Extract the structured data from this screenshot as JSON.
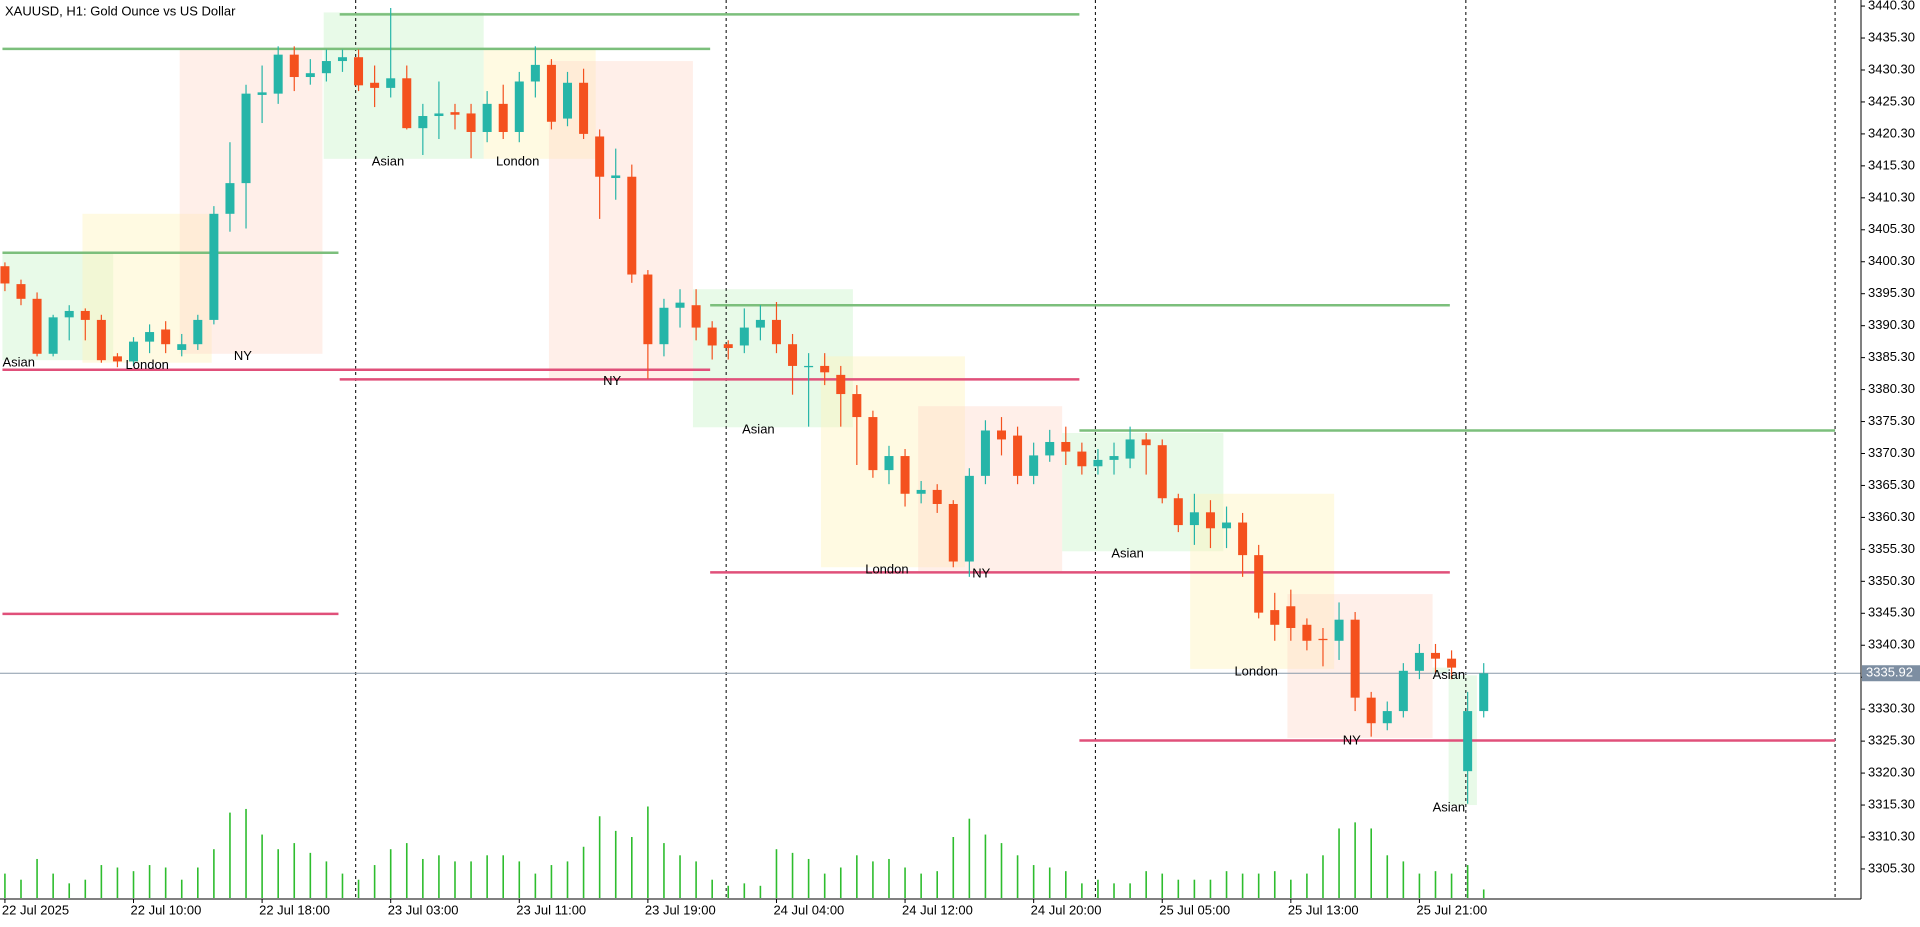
{
  "chart_data": {
    "type": "candlestick",
    "title": "XAUUSD, H1:  Gold Ounce vs US Dollar",
    "categories": [
      "22 Jul 2025",
      null,
      null,
      null,
      null,
      null,
      null,
      null,
      "22 Jul 10:00",
      null,
      null,
      null,
      null,
      null,
      null,
      null,
      "22 Jul 18:00",
      null,
      null,
      null,
      null,
      null,
      null,
      null,
      "23 Jul 03:00",
      null,
      null,
      null,
      null,
      null,
      null,
      null,
      "23 Jul 11:00",
      null,
      null,
      null,
      null,
      null,
      null,
      null,
      "23 Jul 19:00",
      null,
      null,
      null,
      null,
      null,
      null,
      null,
      "24 Jul 04:00",
      null,
      null,
      null,
      null,
      null,
      null,
      null,
      "24 Jul 12:00",
      null,
      null,
      null,
      null,
      null,
      null,
      null,
      "24 Jul 20:00",
      null,
      null,
      null,
      null,
      null,
      null,
      null,
      "25 Jul 05:00",
      null,
      null,
      null,
      null,
      null,
      null,
      null,
      "25 Jul 13:00",
      null,
      null,
      null,
      null,
      null,
      null,
      null,
      "25 Jul 21:00",
      null,
      null,
      null,
      null
    ],
    "open": [
      3399.6,
      3396.8,
      3394.5,
      3385.9,
      3391.6,
      3392.6,
      3391.2,
      3385.5,
      3384.7,
      3387.8,
      3389.7,
      3386.5,
      3387.4,
      3391.2,
      3407.8,
      3412.6,
      3426.4,
      3426.6,
      3432.7,
      3429.2,
      3429.8,
      3431.7,
      3432.3,
      3428.3,
      3427.5,
      3429,
      3421.2,
      3423.1,
      3423.7,
      3423.5,
      3420.6,
      3425,
      3420.6,
      3428.5,
      3431.1,
      3422.7,
      3428.3,
      3419.9,
      3413.4,
      3413.6,
      3398.3,
      3387.4,
      3393.1,
      3393.5,
      3390,
      3387.4,
      3387.2,
      3390,
      3391.2,
      3387.4,
      3383.8,
      3384,
      3382.6,
      3379.6,
      3376,
      3367.7,
      3369.9,
      3364,
      3364.6,
      3362.4,
      3353.4,
      3366.8,
      3373.9,
      3373.1,
      3366.8,
      3370,
      3372.1,
      3370.6,
      3368.3,
      3369.3,
      3369.5,
      3372.5,
      3371.6,
      3363.3,
      3359.1,
      3361.1,
      3358.6,
      3359.5,
      3354.4,
      3345.8,
      3346.4,
      3343.5,
      3341.3,
      3341,
      3344.3,
      3332.1,
      3328.1,
      3330,
      3336.3,
      3339.1,
      3338.2,
      3320.6,
      3330
    ],
    "high": [
      3400.2,
      3397.5,
      3395.5,
      3392,
      3393.5,
      3393,
      3392,
      3386,
      3388.5,
      3390.5,
      3391,
      3389,
      3392,
      3409,
      3419,
      3428,
      3431,
      3434,
      3434,
      3432,
      3433.5,
      3433.5,
      3433.5,
      3431,
      3440,
      3431,
      3425,
      3428.5,
      3425,
      3425,
      3427,
      3428,
      3430,
      3434,
      3432,
      3430,
      3430.5,
      3421,
      3418,
      3415.5,
      3399,
      3394.5,
      3396,
      3396,
      3391,
      3388,
      3393,
      3393.5,
      3394,
      3389,
      3386,
      3386,
      3384,
      3381,
      3377,
      3371.5,
      3371,
      3366,
      3365.5,
      3363,
      3368,
      3375.5,
      3376,
      3374.5,
      3372,
      3374,
      3374.5,
      3372,
      3371,
      3372,
      3374.5,
      3373.5,
      3372.5,
      3364,
      3364,
      3363,
      3362,
      3361,
      3356,
      3348.5,
      3349,
      3344.5,
      3343,
      3347,
      3345.5,
      3333,
      3331.5,
      3337.5,
      3340.5,
      3340.5,
      3339.5,
      3333,
      3337.5
    ],
    "low": [
      3395.7,
      3393.5,
      3385.5,
      3385.5,
      3388,
      3388,
      3384.5,
      3383.8,
      3384,
      3386,
      3386,
      3385.5,
      3386.5,
      3390.5,
      3405,
      3405.5,
      3422,
      3425,
      3427,
      3428,
      3428.5,
      3430,
      3427,
      3424.5,
      3426,
      3421,
      3417,
      3419.5,
      3421,
      3416.5,
      3419,
      3419.5,
      3419,
      3426,
      3421,
      3421.5,
      3419.5,
      3407,
      3410,
      3397,
      3382,
      3385.5,
      3390,
      3388,
      3385,
      3385,
      3386,
      3388,
      3386,
      3379.5,
      3374.5,
      3381,
      3374.5,
      3368.5,
      3366.5,
      3365.5,
      3362,
      3362.5,
      3361,
      3352.5,
      3351,
      3365.5,
      3370,
      3365.5,
      3365.5,
      3369,
      3368.5,
      3367,
      3367,
      3367,
      3368,
      3367,
      3362.5,
      3358,
      3356,
      3355.5,
      3355.5,
      3351,
      3344.5,
      3341,
      3341,
      3339.5,
      3337,
      3338,
      3330,
      3326,
      3327,
      3329,
      3335,
      3336,
      3335,
      3315.5,
      3329
    ],
    "close": [
      3396.9,
      3394.5,
      3385.9,
      3391.6,
      3392.6,
      3391.2,
      3384.9,
      3384.7,
      3387.8,
      3389.3,
      3387.4,
      3387.4,
      3391.2,
      3407.8,
      3412.6,
      3426.6,
      3426.8,
      3432.7,
      3429.2,
      3429.8,
      3431.7,
      3432.3,
      3427.9,
      3427.5,
      3429,
      3421.2,
      3423.1,
      3423.5,
      3423.3,
      3420.6,
      3425,
      3420.6,
      3428.5,
      3431.1,
      3422.2,
      3428.3,
      3420.3,
      3413.6,
      3413.8,
      3398.3,
      3387.4,
      3393.1,
      3393.9,
      3390,
      3387.2,
      3386.8,
      3390,
      3391.2,
      3387.4,
      3384,
      3384,
      3383,
      3379.6,
      3376,
      3367.7,
      3369.9,
      3364,
      3364.6,
      3362.4,
      3353.4,
      3366.8,
      3373.9,
      3372.5,
      3366.8,
      3370,
      3372.1,
      3370.6,
      3368.3,
      3369.3,
      3369.9,
      3372.5,
      3371.6,
      3363.3,
      3359.1,
      3361.1,
      3358.6,
      3359.5,
      3354.4,
      3345.4,
      3343.5,
      3343,
      3341,
      3341.1,
      3344.3,
      3332.1,
      3328.1,
      3330,
      3336.3,
      3339.1,
      3338.2,
      3336.8,
      3330,
      3335.9
    ],
    "volume": [
      20,
      15,
      32,
      20,
      12,
      15,
      27,
      25,
      22,
      27,
      25,
      15,
      25,
      40,
      70,
      73,
      52,
      40,
      45,
      37,
      30,
      20,
      15,
      27,
      40,
      45,
      32,
      35,
      30,
      30,
      35,
      35,
      30,
      20,
      27,
      30,
      42,
      67,
      55,
      50,
      75,
      45,
      35,
      30,
      15,
      10,
      12,
      10,
      40,
      37,
      32,
      20,
      25,
      35,
      30,
      32,
      25,
      20,
      22,
      50,
      65,
      52,
      45,
      35,
      27,
      25,
      22,
      12,
      15,
      12,
      12,
      22,
      20,
      15,
      15,
      15,
      22,
      20,
      20,
      22,
      15,
      20,
      35,
      57,
      62,
      57,
      35,
      30,
      20,
      22,
      20,
      27,
      7
    ],
    "bull_color": "#26b5a8",
    "bear_color": "#f4511e",
    "volume_color": "#2ebd2e",
    "ylim": [
      3300.6,
      3441.25
    ],
    "yticks": [
      {
        "value": 3440.3,
        "label": "3440.30"
      },
      {
        "value": 3435.3,
        "label": "3435.30"
      },
      {
        "value": 3430.3,
        "label": "3430.30"
      },
      {
        "value": 3425.3,
        "label": "3425.30"
      },
      {
        "value": 3420.3,
        "label": "3420.30"
      },
      {
        "value": 3415.3,
        "label": "3415.30"
      },
      {
        "value": 3410.3,
        "label": "3410.30"
      },
      {
        "value": 3405.3,
        "label": "3405.30"
      },
      {
        "value": 3400.3,
        "label": "3400.30"
      },
      {
        "value": 3395.3,
        "label": "3395.30"
      },
      {
        "value": 3390.3,
        "label": "3390.30"
      },
      {
        "value": 3385.3,
        "label": "3385.30"
      },
      {
        "value": 3380.3,
        "label": "3380.30"
      },
      {
        "value": 3375.3,
        "label": "3375.30"
      },
      {
        "value": 3370.3,
        "label": "3370.30"
      },
      {
        "value": 3365.3,
        "label": "3365.30"
      },
      {
        "value": 3360.3,
        "label": "3360.30"
      },
      {
        "value": 3355.3,
        "label": "3355.30"
      },
      {
        "value": 3350.3,
        "label": "3350.30"
      },
      {
        "value": 3345.3,
        "label": "3345.30"
      },
      {
        "value": 3340.3,
        "label": "3340.30"
      },
      {
        "value": 3335.3,
        "label": "3335.30"
      },
      {
        "value": 3330.3,
        "label": "3330.30"
      },
      {
        "value": 3325.3,
        "label": "3325.30"
      },
      {
        "value": 3320.3,
        "label": "3320.30"
      },
      {
        "value": 3315.3,
        "label": "3315.30"
      },
      {
        "value": 3310.3,
        "label": "3310.30"
      },
      {
        "value": 3305.3,
        "label": "3305.30"
      }
    ],
    "current_price": 3335.92,
    "levels": [
      {
        "value": 3401.7,
        "color": "#7cbf7c"
      },
      {
        "value": 3383.4,
        "color": "#e0507a"
      },
      {
        "value": 3345.2,
        "color": "#e0507a"
      },
      {
        "value": 3433.6,
        "color": "#7cbf7c"
      },
      {
        "value": 3439.0,
        "color": "#7cbf7c"
      },
      {
        "value": 3381.9,
        "color": "#e0507a"
      },
      {
        "value": 3393.5,
        "color": "#7cbf7c"
      },
      {
        "value": 3351.7,
        "color": "#e0507a"
      },
      {
        "value": 3373.9,
        "color": "#7cbf7c"
      },
      {
        "value": 3325.4,
        "color": "#e0507a"
      }
    ],
    "sessions": [
      {
        "name": "Asian",
        "high": 3401.7,
        "low": 3384.9
      },
      {
        "name": "London",
        "high": 3407.8,
        "low": 3384.5
      },
      {
        "name": "NY",
        "high": 3433.6,
        "low": 3385.9
      },
      {
        "name": "Asian",
        "high": 3439.3,
        "low": 3416.4
      },
      {
        "name": "London",
        "high": 3433.6,
        "low": 3416.4
      },
      {
        "name": "NY",
        "high": 3431.7,
        "low": 3382
      },
      {
        "name": "Asian",
        "high": 3396,
        "low": 3374.4
      },
      {
        "name": "London",
        "high": 3385.5,
        "low": 3352.5
      },
      {
        "name": "NY",
        "high": 3377.7,
        "low": 3351.9
      },
      {
        "name": "Asian",
        "high": 3373.5,
        "low": 3355
      },
      {
        "name": "London",
        "high": 3364,
        "low": 3336.6
      },
      {
        "name": "NY",
        "high": 3348.3,
        "low": 3325.8
      },
      {
        "name": "Asian",
        "high": 3335.6,
        "low": 3315.3
      },
      {
        "name": "Asian",
        "high": 3336.8,
        "low": 3336.0
      }
    ]
  }
}
